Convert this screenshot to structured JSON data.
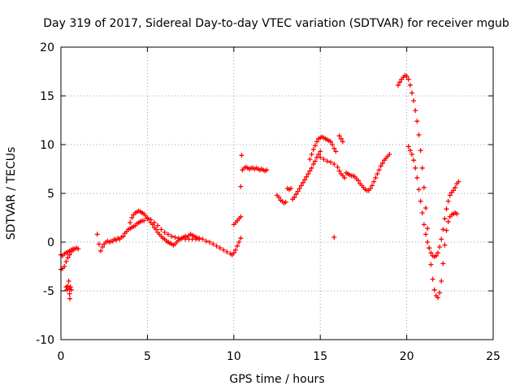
{
  "chart_data": {
    "type": "scatter",
    "title": "Day 319 of 2017, Sidereal Day-to-day VTEC variation (SDTVAR) for receiver mgub",
    "xlabel": "GPS time / hours",
    "ylabel": "SDTVAR / TECUs",
    "xlim": [
      0,
      25
    ],
    "ylim": [
      -10,
      20
    ],
    "xticks": [
      0,
      5,
      10,
      15,
      20,
      25
    ],
    "yticks": [
      -10,
      -5,
      0,
      5,
      10,
      15,
      20
    ],
    "grid": true,
    "marker": "+",
    "color": "#ff0000",
    "series": [
      {
        "name": "SDTVAR",
        "points": [
          [
            0.0,
            -1.3
          ],
          [
            0.1,
            -1.4
          ],
          [
            0.2,
            -1.2
          ],
          [
            0.3,
            -1.1
          ],
          [
            0.4,
            -1.0
          ],
          [
            0.5,
            -0.9
          ],
          [
            0.6,
            -0.8
          ],
          [
            0.7,
            -0.7
          ],
          [
            0.8,
            -0.7
          ],
          [
            0.9,
            -0.6
          ],
          [
            1.0,
            -0.7
          ],
          [
            0.0,
            -2.8
          ],
          [
            0.1,
            -2.7
          ],
          [
            0.2,
            -2.5
          ],
          [
            0.3,
            -2.0
          ],
          [
            0.4,
            -1.6
          ],
          [
            0.5,
            -1.3
          ],
          [
            0.6,
            -1.0
          ],
          [
            0.7,
            -0.8
          ],
          [
            0.4,
            -4.5
          ],
          [
            0.45,
            -4.0
          ],
          [
            0.5,
            -4.8
          ],
          [
            0.5,
            -5.3
          ],
          [
            0.52,
            -5.8
          ],
          [
            0.55,
            -4.6
          ],
          [
            0.6,
            -4.9
          ],
          [
            0.3,
            -4.6
          ],
          [
            0.35,
            -4.9
          ],
          [
            2.1,
            0.8
          ],
          [
            2.2,
            -0.2
          ],
          [
            2.3,
            -0.9
          ],
          [
            2.4,
            -0.5
          ],
          [
            2.5,
            -0.2
          ],
          [
            2.6,
            0.0
          ],
          [
            2.7,
            0.1
          ],
          [
            2.8,
            0.0
          ],
          [
            2.9,
            0.1
          ],
          [
            3.0,
            0.1
          ],
          [
            3.1,
            0.3
          ],
          [
            3.2,
            0.2
          ],
          [
            3.3,
            0.4
          ],
          [
            3.4,
            0.3
          ],
          [
            3.5,
            0.5
          ],
          [
            3.6,
            0.6
          ],
          [
            3.7,
            0.9
          ],
          [
            3.8,
            1.1
          ],
          [
            3.9,
            1.3
          ],
          [
            4.0,
            1.4
          ],
          [
            4.1,
            1.5
          ],
          [
            4.2,
            1.6
          ],
          [
            4.3,
            1.7
          ],
          [
            4.4,
            1.9
          ],
          [
            4.5,
            2.0
          ],
          [
            4.6,
            2.1
          ],
          [
            4.7,
            2.2
          ],
          [
            4.0,
            2.0
          ],
          [
            4.1,
            2.5
          ],
          [
            4.2,
            2.8
          ],
          [
            4.3,
            3.0
          ],
          [
            4.4,
            3.1
          ],
          [
            4.5,
            3.2
          ],
          [
            4.6,
            3.1
          ],
          [
            4.7,
            3.0
          ],
          [
            4.8,
            2.9
          ],
          [
            4.9,
            2.7
          ],
          [
            5.0,
            2.5
          ],
          [
            5.1,
            2.3
          ],
          [
            5.2,
            2.0
          ],
          [
            5.3,
            1.8
          ],
          [
            5.4,
            1.5
          ],
          [
            5.5,
            1.3
          ],
          [
            5.6,
            1.0
          ],
          [
            5.7,
            0.8
          ],
          [
            5.8,
            0.6
          ],
          [
            5.9,
            0.4
          ],
          [
            6.0,
            0.3
          ],
          [
            6.1,
            0.1
          ],
          [
            6.2,
            0.0
          ],
          [
            6.3,
            -0.1
          ],
          [
            6.4,
            -0.2
          ],
          [
            6.5,
            -0.3
          ],
          [
            6.6,
            -0.2
          ],
          [
            6.7,
            0.0
          ],
          [
            6.8,
            0.2
          ],
          [
            6.9,
            0.3
          ],
          [
            7.0,
            0.4
          ],
          [
            7.1,
            0.5
          ],
          [
            7.2,
            0.6
          ],
          [
            7.3,
            0.5
          ],
          [
            7.4,
            0.7
          ],
          [
            7.5,
            0.8
          ],
          [
            7.6,
            0.7
          ],
          [
            7.7,
            0.6
          ],
          [
            7.8,
            0.5
          ],
          [
            7.9,
            0.4
          ],
          [
            8.0,
            0.3
          ],
          [
            4.8,
            2.2
          ],
          [
            5.0,
            2.4
          ],
          [
            5.2,
            2.3
          ],
          [
            5.4,
            2.0
          ],
          [
            5.6,
            1.7
          ],
          [
            5.8,
            1.3
          ],
          [
            6.0,
            1.0
          ],
          [
            6.2,
            0.8
          ],
          [
            6.4,
            0.6
          ],
          [
            6.6,
            0.5
          ],
          [
            6.8,
            0.4
          ],
          [
            7.0,
            0.4
          ],
          [
            7.2,
            0.3
          ],
          [
            7.4,
            0.3
          ],
          [
            7.6,
            0.3
          ],
          [
            7.8,
            0.3
          ],
          [
            8.0,
            0.4
          ],
          [
            8.2,
            0.3
          ],
          [
            8.4,
            0.1
          ],
          [
            8.6,
            0.0
          ],
          [
            8.8,
            -0.2
          ],
          [
            9.0,
            -0.4
          ],
          [
            9.2,
            -0.6
          ],
          [
            9.4,
            -0.8
          ],
          [
            9.6,
            -1.0
          ],
          [
            9.8,
            -1.2
          ],
          [
            9.9,
            -1.3
          ],
          [
            10.0,
            -1.1
          ],
          [
            10.1,
            -0.8
          ],
          [
            10.2,
            -0.4
          ],
          [
            10.3,
            0.0
          ],
          [
            10.4,
            0.4
          ],
          [
            10.0,
            1.8
          ],
          [
            10.1,
            2.0
          ],
          [
            10.2,
            2.2
          ],
          [
            10.3,
            2.4
          ],
          [
            10.4,
            2.6
          ],
          [
            10.45,
            8.9
          ],
          [
            10.4,
            5.7
          ],
          [
            10.5,
            7.4
          ],
          [
            10.6,
            7.6
          ],
          [
            10.7,
            7.7
          ],
          [
            10.8,
            7.6
          ],
          [
            10.9,
            7.5
          ],
          [
            11.0,
            7.6
          ],
          [
            11.1,
            7.6
          ],
          [
            11.2,
            7.5
          ],
          [
            11.3,
            7.6
          ],
          [
            11.4,
            7.5
          ],
          [
            11.5,
            7.4
          ],
          [
            11.6,
            7.5
          ],
          [
            11.7,
            7.4
          ],
          [
            11.8,
            7.3
          ],
          [
            11.9,
            7.4
          ],
          [
            12.5,
            4.8
          ],
          [
            12.6,
            4.6
          ],
          [
            12.7,
            4.3
          ],
          [
            12.8,
            4.2
          ],
          [
            12.9,
            4.0
          ],
          [
            13.0,
            4.1
          ],
          [
            13.1,
            5.5
          ],
          [
            13.2,
            5.4
          ],
          [
            13.3,
            5.5
          ],
          [
            13.4,
            4.4
          ],
          [
            13.5,
            4.6
          ],
          [
            13.6,
            4.9
          ],
          [
            13.7,
            5.2
          ],
          [
            13.8,
            5.5
          ],
          [
            13.9,
            5.8
          ],
          [
            14.0,
            6.1
          ],
          [
            14.1,
            6.4
          ],
          [
            14.2,
            6.7
          ],
          [
            14.3,
            7.0
          ],
          [
            14.4,
            7.3
          ],
          [
            14.5,
            7.6
          ],
          [
            14.6,
            8.0
          ],
          [
            14.7,
            8.3
          ],
          [
            14.8,
            8.7
          ],
          [
            14.9,
            9.0
          ],
          [
            15.0,
            9.3
          ],
          [
            14.4,
            8.5
          ],
          [
            14.5,
            9.0
          ],
          [
            14.6,
            9.5
          ],
          [
            14.7,
            9.9
          ],
          [
            14.8,
            10.3
          ],
          [
            14.9,
            10.6
          ],
          [
            15.0,
            10.7
          ],
          [
            15.1,
            10.8
          ],
          [
            15.2,
            10.7
          ],
          [
            15.3,
            10.6
          ],
          [
            15.4,
            10.5
          ],
          [
            15.5,
            10.4
          ],
          [
            15.6,
            10.3
          ],
          [
            15.7,
            10.0
          ],
          [
            15.8,
            9.6
          ],
          [
            15.9,
            9.3
          ],
          [
            15.0,
            8.7
          ],
          [
            15.2,
            8.5
          ],
          [
            15.4,
            8.3
          ],
          [
            15.6,
            8.2
          ],
          [
            15.8,
            8.0
          ],
          [
            16.0,
            7.7
          ],
          [
            16.1,
            7.3
          ],
          [
            16.2,
            7.0
          ],
          [
            16.3,
            6.8
          ],
          [
            16.4,
            6.6
          ],
          [
            15.8,
            0.5
          ],
          [
            16.1,
            10.9
          ],
          [
            16.2,
            10.6
          ],
          [
            16.3,
            10.3
          ],
          [
            16.5,
            7.1
          ],
          [
            16.6,
            7.0
          ],
          [
            16.7,
            6.9
          ],
          [
            16.8,
            6.8
          ],
          [
            16.9,
            6.8
          ],
          [
            17.0,
            6.7
          ],
          [
            17.1,
            6.5
          ],
          [
            17.2,
            6.3
          ],
          [
            17.3,
            6.0
          ],
          [
            17.4,
            5.8
          ],
          [
            17.5,
            5.6
          ],
          [
            17.6,
            5.4
          ],
          [
            17.7,
            5.3
          ],
          [
            17.8,
            5.3
          ],
          [
            17.9,
            5.5
          ],
          [
            18.0,
            5.8
          ],
          [
            18.1,
            6.2
          ],
          [
            18.2,
            6.6
          ],
          [
            18.3,
            7.0
          ],
          [
            18.4,
            7.4
          ],
          [
            18.5,
            7.8
          ],
          [
            18.6,
            8.1
          ],
          [
            18.7,
            8.4
          ],
          [
            18.8,
            8.6
          ],
          [
            18.9,
            8.8
          ],
          [
            19.0,
            9.0
          ],
          [
            19.5,
            16.1
          ],
          [
            19.6,
            16.4
          ],
          [
            19.7,
            16.7
          ],
          [
            19.8,
            16.9
          ],
          [
            19.9,
            17.1
          ],
          [
            20.0,
            17.0
          ],
          [
            20.1,
            16.7
          ],
          [
            20.2,
            16.1
          ],
          [
            20.3,
            15.3
          ],
          [
            20.4,
            14.5
          ],
          [
            20.5,
            13.5
          ],
          [
            20.6,
            12.4
          ],
          [
            20.7,
            11.0
          ],
          [
            20.8,
            9.4
          ],
          [
            20.9,
            7.6
          ],
          [
            21.0,
            5.6
          ],
          [
            21.1,
            3.5
          ],
          [
            21.2,
            1.4
          ],
          [
            21.3,
            -0.6
          ],
          [
            21.4,
            -2.3
          ],
          [
            21.5,
            -3.8
          ],
          [
            21.6,
            -4.9
          ],
          [
            21.7,
            -5.5
          ],
          [
            21.8,
            -5.7
          ],
          [
            21.9,
            -5.2
          ],
          [
            22.0,
            -4.0
          ],
          [
            22.1,
            -2.2
          ],
          [
            22.2,
            -0.3
          ],
          [
            22.3,
            1.2
          ],
          [
            22.4,
            2.1
          ],
          [
            22.5,
            2.6
          ],
          [
            22.6,
            2.8
          ],
          [
            22.7,
            2.9
          ],
          [
            22.8,
            3.0
          ],
          [
            22.9,
            2.9
          ],
          [
            20.1,
            9.8
          ],
          [
            20.2,
            9.4
          ],
          [
            20.3,
            9.0
          ],
          [
            20.4,
            8.4
          ],
          [
            20.5,
            7.6
          ],
          [
            20.6,
            6.6
          ],
          [
            20.7,
            5.4
          ],
          [
            20.8,
            4.2
          ],
          [
            20.9,
            3.0
          ],
          [
            21.0,
            1.8
          ],
          [
            21.1,
            0.8
          ],
          [
            21.2,
            0.0
          ],
          [
            21.3,
            -0.6
          ],
          [
            21.4,
            -1.1
          ],
          [
            21.5,
            -1.4
          ],
          [
            21.6,
            -1.5
          ],
          [
            21.7,
            -1.4
          ],
          [
            21.8,
            -1.1
          ],
          [
            21.9,
            -0.5
          ],
          [
            22.0,
            0.3
          ],
          [
            22.1,
            1.3
          ],
          [
            22.2,
            2.4
          ],
          [
            22.3,
            3.4
          ],
          [
            22.4,
            4.2
          ],
          [
            22.5,
            4.8
          ],
          [
            22.6,
            5.1
          ],
          [
            22.7,
            5.3
          ],
          [
            22.8,
            5.6
          ],
          [
            22.9,
            6.0
          ],
          [
            23.0,
            6.2
          ]
        ]
      }
    ]
  }
}
